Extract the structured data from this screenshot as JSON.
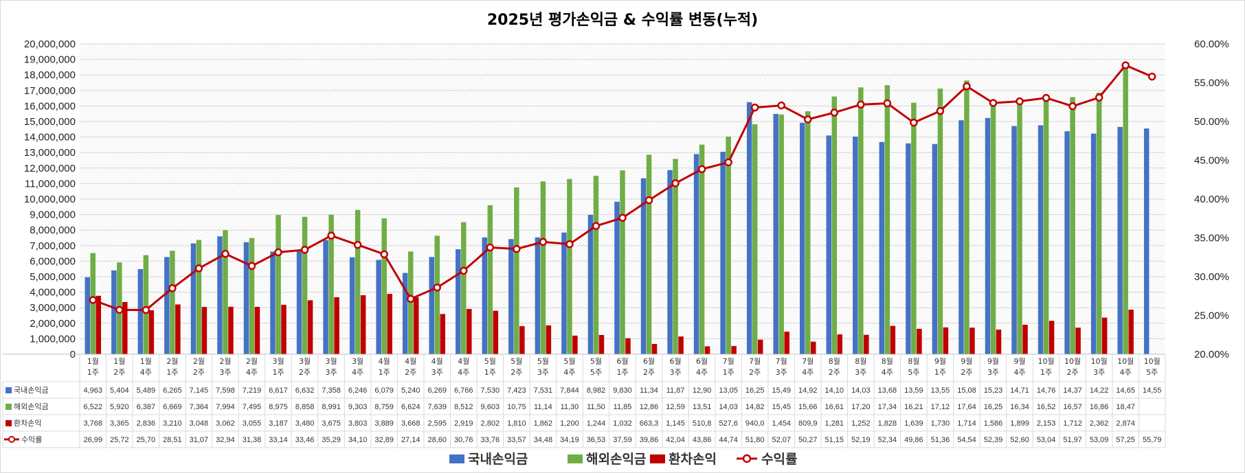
{
  "chart_data": {
    "type": "bar",
    "title": "2025년 평가손익금 & 수익률 변동(누적)",
    "categories": [
      [
        "1월",
        "1주"
      ],
      [
        "1월",
        "2주"
      ],
      [
        "1월",
        "4주"
      ],
      [
        "2월",
        "1주"
      ],
      [
        "2월",
        "2주"
      ],
      [
        "2월",
        "3주"
      ],
      [
        "2월",
        "4주"
      ],
      [
        "3월",
        "1주"
      ],
      [
        "3월",
        "2주"
      ],
      [
        "3월",
        "3주"
      ],
      [
        "3월",
        "4주"
      ],
      [
        "4월",
        "1주"
      ],
      [
        "4월",
        "2주"
      ],
      [
        "4월",
        "3주"
      ],
      [
        "4월",
        "4주"
      ],
      [
        "5월",
        "1주"
      ],
      [
        "5월",
        "2주"
      ],
      [
        "5월",
        "3주"
      ],
      [
        "5월",
        "4주"
      ],
      [
        "5월",
        "5주"
      ],
      [
        "6월",
        "1주"
      ],
      [
        "6월",
        "2주"
      ],
      [
        "6월",
        "3주"
      ],
      [
        "6월",
        "4주"
      ],
      [
        "7월",
        "1주"
      ],
      [
        "7월",
        "2주"
      ],
      [
        "7월",
        "3주"
      ],
      [
        "7월",
        "4주"
      ],
      [
        "8월",
        "2주"
      ],
      [
        "8월",
        "3주"
      ],
      [
        "8월",
        "4주"
      ],
      [
        "8월",
        "5주"
      ],
      [
        "9월",
        "1주"
      ],
      [
        "9월",
        "2주"
      ],
      [
        "9월",
        "3주"
      ],
      [
        "9월",
        "4주"
      ],
      [
        "10월",
        "1주"
      ],
      [
        "10월",
        "2주"
      ],
      [
        "10월",
        "3주"
      ],
      [
        "10월",
        "4주"
      ],
      [
        "10월",
        "5주"
      ]
    ],
    "y_left": {
      "min": 0,
      "max": 20000000,
      "ticks": [
        "0",
        "1,000,000",
        "2,000,000",
        "3,000,000",
        "4,000,000",
        "5,000,000",
        "6,000,000",
        "7,000,000",
        "8,000,000",
        "9,000,000",
        "10,000,000",
        "11,000,000",
        "12,000,000",
        "13,000,000",
        "14,000,000",
        "15,000,000",
        "16,000,000",
        "17,000,000",
        "18,000,000",
        "19,000,000",
        "20,000,000"
      ]
    },
    "y_right": {
      "min": 20,
      "max": 60,
      "ticks": [
        "20.00%",
        "25.00%",
        "30.00%",
        "35.00%",
        "40.00%",
        "45.00%",
        "50.00%",
        "55.00%",
        "60.00%"
      ]
    },
    "series": [
      {
        "name": "국내손익금",
        "kind": "bar",
        "color": "#4472C4",
        "values": [
          4963000,
          5404000,
          5489000,
          6265000,
          7145000,
          7598000,
          7219000,
          6617000,
          6632000,
          7358000,
          6246000,
          6079000,
          5240000,
          6269000,
          6766000,
          7530000,
          7423000,
          7531000,
          7844000,
          8982000,
          9830000,
          11340000,
          11870000,
          12900000,
          13050000,
          16250000,
          15490000,
          14920000,
          14100000,
          14030000,
          13680000,
          13590000,
          13550000,
          15080000,
          15230000,
          14710000,
          14760000,
          14370000,
          14220000,
          14650000,
          14550000
        ],
        "labels": [
          "4,963",
          "5,404",
          "5,489",
          "6,265",
          "7,145",
          "7,598",
          "7,219",
          "6,617",
          "6,632",
          "7,358",
          "6,246",
          "6,079",
          "5,240",
          "6,269",
          "6,766",
          "7,530",
          "7,423",
          "7,531",
          "7,844",
          "8,982",
          "9,830",
          "11,34",
          "11,87",
          "12,90",
          "13,05",
          "16,25",
          "15,49",
          "14,92",
          "14,10",
          "14,03",
          "13,68",
          "13,59",
          "13,55",
          "15,08",
          "15,23",
          "14,71",
          "14,76",
          "14,37",
          "14,22",
          "14,65",
          "14,55"
        ]
      },
      {
        "name": "해외손익금",
        "kind": "bar",
        "color": "#70AD47",
        "values": [
          6522000,
          5920000,
          6387000,
          6669000,
          7364000,
          7994000,
          7495000,
          8975000,
          8858000,
          8991000,
          9303000,
          8759000,
          6624000,
          7639000,
          8512000,
          9603000,
          10750000,
          11140000,
          11300000,
          11500000,
          11850000,
          12860000,
          12590000,
          13510000,
          14030000,
          14820000,
          15450000,
          15660000,
          16610000,
          17200000,
          17340000,
          16210000,
          17120000,
          17640000,
          16250000,
          16340000,
          16520000,
          16570000,
          16860000,
          18470000,
          null
        ],
        "labels": [
          "6,522",
          "5,920",
          "6,387",
          "6,669",
          "7,364",
          "7,994",
          "7,495",
          "8,975",
          "8,858",
          "8,991",
          "9,303",
          "8,759",
          "6,624",
          "7,639",
          "8,512",
          "9,603",
          "10,75",
          "11,14",
          "11,30",
          "11,50",
          "11,85",
          "12,86",
          "12,59",
          "13,51",
          "14,03",
          "14,82",
          "15,45",
          "15,66",
          "16,61",
          "17,20",
          "17,34",
          "16,21",
          "17,12",
          "17,64",
          "16,25",
          "16,34",
          "16,52",
          "16,57",
          "16,86",
          "18,47",
          ""
        ]
      },
      {
        "name": "환차손익",
        "kind": "bar",
        "color": "#C00000",
        "values": [
          3768000,
          3365000,
          2836000,
          3210000,
          3048000,
          3062000,
          3055000,
          3187000,
          3480000,
          3675000,
          3803000,
          3889000,
          3668000,
          2595000,
          2919000,
          2802000,
          1810000,
          1862000,
          1200000,
          1244000,
          1032000,
          663300,
          1145000,
          510800,
          527600,
          940000,
          1454000,
          809900,
          1281000,
          1252000,
          1828000,
          1639000,
          1730000,
          1714000,
          1586000,
          1899000,
          2153000,
          1712000,
          2362000,
          2874000,
          null
        ],
        "labels": [
          "3,768",
          "3,365",
          "2,836",
          "3,210",
          "3,048",
          "3,062",
          "3,055",
          "3,187",
          "3,480",
          "3,675",
          "3,803",
          "3,889",
          "3,668",
          "2,595",
          "2,919",
          "2,802",
          "1,810",
          "1,862",
          "1,200",
          "1,244",
          "1,032",
          "663,3",
          "1,145",
          "510,8",
          "527,6",
          "940,0",
          "1,454",
          "809,9",
          "1,281",
          "1,252",
          "1,828",
          "1,639",
          "1,730",
          "1,714",
          "1,586",
          "1,899",
          "2,153",
          "1,712",
          "2,362",
          "2,874",
          ""
        ]
      },
      {
        "name": "수익률",
        "kind": "line",
        "axis": "right",
        "color": "#C00000",
        "values": [
          26.99,
          25.72,
          25.7,
          28.51,
          31.07,
          32.94,
          31.38,
          33.14,
          33.46,
          35.29,
          34.1,
          32.89,
          27.14,
          28.6,
          30.76,
          33.76,
          33.57,
          34.48,
          34.19,
          36.53,
          37.59,
          39.86,
          42.04,
          43.86,
          44.74,
          51.8,
          52.07,
          50.27,
          51.15,
          52.19,
          52.34,
          49.86,
          51.36,
          54.54,
          52.39,
          52.6,
          53.04,
          51.97,
          53.09,
          57.25,
          55.79
        ],
        "labels": [
          "26,99",
          "25,72",
          "25,70",
          "28,51",
          "31,07",
          "32,94",
          "31,38",
          "33,14",
          "33,46",
          "35,29",
          "34,10",
          "32,89",
          "27,14",
          "28,60",
          "30,76",
          "33,76",
          "33,57",
          "34,48",
          "34,19",
          "36,53",
          "37,59",
          "39,86",
          "42,04",
          "43,86",
          "44,74",
          "51,80",
          "52,07",
          "50,27",
          "51,15",
          "52,19",
          "52,34",
          "49,86",
          "51,36",
          "54,54",
          "52,39",
          "52,60",
          "53,04",
          "51,97",
          "53,09",
          "57,25",
          "55,79"
        ]
      }
    ]
  }
}
